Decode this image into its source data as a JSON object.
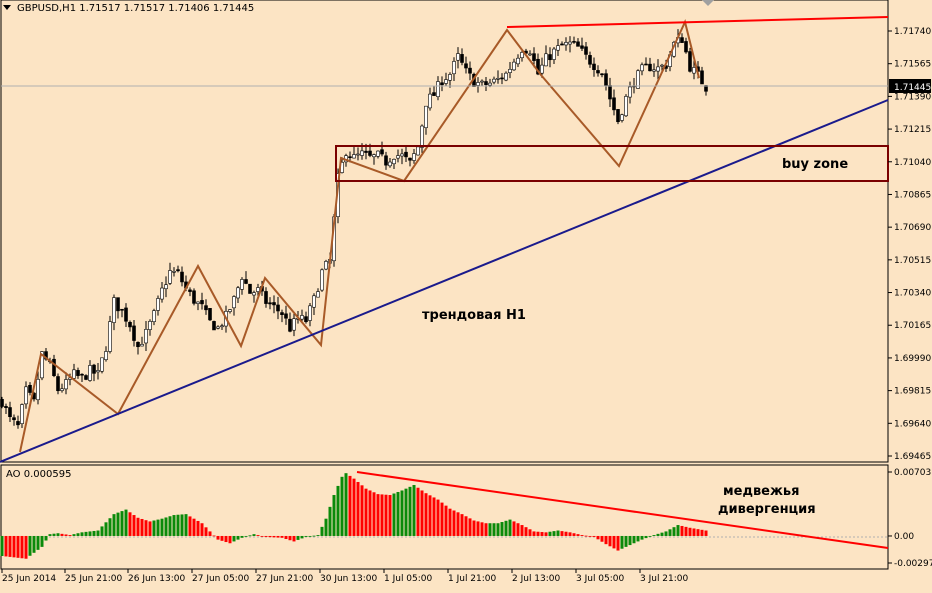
{
  "header": {
    "symbol_line": "GBPUSD,H1  1.71517 1.71517 1.71406 1.71445",
    "indicator_line": "AO 0.000595"
  },
  "annotations": {
    "buy_zone": "buy zone",
    "trend_label": "трендовая Н1",
    "divergence_line1": "медвежья",
    "divergence_line2": "дивергенция"
  },
  "chart_data": [
    {
      "type": "candlestick",
      "title": "GBPUSD,H1",
      "ohlc_header": {
        "open": 1.71517,
        "high": 1.71517,
        "low": 1.71406,
        "close": 1.71445
      },
      "current_price": 1.71445,
      "ylim": [
        1.69445,
        1.71856
      ],
      "y_ticks": [
        1.7174,
        1.71565,
        1.7139,
        1.71215,
        1.7104,
        1.70865,
        1.7069,
        1.70515,
        1.7034,
        1.70165,
        1.6999,
        1.69815,
        1.6964,
        1.69465
      ],
      "y_tick_labels": [
        "1.71740",
        "1.71565",
        "1.71390",
        "1.71215",
        "1.71040",
        "1.70865",
        "1.70690",
        "1.70515",
        "1.70340",
        "1.70165",
        "1.69990",
        "1.69815",
        "1.69640",
        "1.69465"
      ],
      "x_tick_labels": [
        "25 Jun 2014",
        "25 Jun 21:00",
        "26 Jun 13:00",
        "27 Jun 05:00",
        "27 Jun 21:00",
        "30 Jun 13:00",
        "1 Jul 05:00",
        "1 Jul 21:00",
        "2 Jul 13:00",
        "3 Jul 05:00",
        "3 Jul 21:00"
      ],
      "close_path_anchors": [
        [
          0,
          1.6976
        ],
        [
          2,
          1.6966
        ],
        [
          4,
          1.6962
        ],
        [
          6,
          1.6981
        ],
        [
          8,
          1.6975
        ],
        [
          10,
          1.7001
        ],
        [
          12,
          1.6995
        ],
        [
          14,
          1.6982
        ],
        [
          16,
          1.6985
        ],
        [
          18,
          1.699
        ],
        [
          20,
          1.6988
        ],
        [
          22,
          1.6992
        ],
        [
          24,
          1.699
        ],
        [
          26,
          1.7005
        ],
        [
          28,
          1.7029
        ],
        [
          30,
          1.7024
        ],
        [
          32,
          1.7017
        ],
        [
          34,
          1.7005
        ],
        [
          36,
          1.7012
        ],
        [
          38,
          1.7022
        ],
        [
          40,
          1.7035
        ],
        [
          42,
          1.7045
        ],
        [
          44,
          1.7044
        ],
        [
          46,
          1.7036
        ],
        [
          48,
          1.703
        ],
        [
          50,
          1.7026
        ],
        [
          52,
          1.7018
        ],
        [
          54,
          1.7015
        ],
        [
          56,
          1.7021
        ],
        [
          58,
          1.703
        ],
        [
          60,
          1.7043
        ],
        [
          62,
          1.7034
        ],
        [
          64,
          1.7035
        ],
        [
          66,
          1.7029
        ],
        [
          68,
          1.7026
        ],
        [
          70,
          1.7023
        ],
        [
          72,
          1.7015
        ],
        [
          74,
          1.702
        ],
        [
          76,
          1.7019
        ],
        [
          78,
          1.703
        ],
        [
          80,
          1.7045
        ],
        [
          82,
          1.7051
        ],
        [
          84,
          1.7095
        ],
        [
          86,
          1.711
        ],
        [
          88,
          1.7106
        ],
        [
          90,
          1.7108
        ],
        [
          92,
          1.7106
        ],
        [
          94,
          1.7107
        ],
        [
          96,
          1.7104
        ],
        [
          98,
          1.7108
        ],
        [
          100,
          1.7107
        ],
        [
          102,
          1.7103
        ],
        [
          104,
          1.7112
        ],
        [
          106,
          1.7136
        ],
        [
          108,
          1.714
        ],
        [
          110,
          1.7148
        ],
        [
          112,
          1.7151
        ],
        [
          114,
          1.716
        ],
        [
          116,
          1.7152
        ],
        [
          118,
          1.7147
        ],
        [
          120,
          1.7145
        ],
        [
          122,
          1.7146
        ],
        [
          124,
          1.7148
        ],
        [
          126,
          1.7151
        ],
        [
          128,
          1.7158
        ],
        [
          130,
          1.7165
        ],
        [
          132,
          1.7164
        ],
        [
          134,
          1.7151
        ],
        [
          136,
          1.7159
        ],
        [
          138,
          1.7163
        ],
        [
          140,
          1.7166
        ],
        [
          142,
          1.7167
        ],
        [
          144,
          1.7165
        ],
        [
          146,
          1.716
        ],
        [
          148,
          1.7156
        ],
        [
          150,
          1.7152
        ],
        [
          152,
          1.7138
        ],
        [
          154,
          1.7126
        ],
        [
          156,
          1.7138
        ],
        [
          158,
          1.7147
        ],
        [
          160,
          1.7153
        ],
        [
          162,
          1.7155
        ],
        [
          164,
          1.7154
        ],
        [
          166,
          1.7156
        ],
        [
          168,
          1.7167
        ],
        [
          170,
          1.717
        ],
        [
          172,
          1.7155
        ],
        [
          174,
          1.715
        ],
        [
          176,
          1.7144
        ]
      ],
      "drawn_objects": [
        {
          "kind": "rectangle",
          "label": "buy zone",
          "price_top": 1.7113,
          "price_bottom": 1.70935,
          "color": "#7a0000"
        },
        {
          "kind": "trendline",
          "label": "трендовая Н1",
          "color": "#1a1a8c"
        },
        {
          "kind": "trendline",
          "color": "#ff0000"
        },
        {
          "kind": "zigzag",
          "color": "#a85a28"
        }
      ]
    },
    {
      "type": "bar",
      "title": "AO 0.000595",
      "current_value": 0.000595,
      "ylim": [
        -0.00297,
        0.00703
      ],
      "y_ticks": [
        0.00703,
        0.0,
        -0.00297
      ],
      "y_tick_labels": [
        "0.00703",
        "0.00",
        "-0.00297"
      ],
      "colors": {
        "up": "#0a8a0a",
        "down": "#ff0000"
      },
      "values_anchors": [
        [
          0,
          -0.0022
        ],
        [
          6,
          -0.0025
        ],
        [
          10,
          -0.0012
        ],
        [
          12,
          0.0002
        ],
        [
          14,
          0.0003
        ],
        [
          17,
          0.0001
        ],
        [
          20,
          0.0004
        ],
        [
          24,
          0.0006
        ],
        [
          28,
          0.0024
        ],
        [
          31,
          0.0029
        ],
        [
          34,
          0.002
        ],
        [
          37,
          0.0016
        ],
        [
          40,
          0.0019
        ],
        [
          43,
          0.0023
        ],
        [
          46,
          0.0024
        ],
        [
          50,
          0.0014
        ],
        [
          54,
          -0.0004
        ],
        [
          57,
          -0.0008
        ],
        [
          60,
          -0.0002
        ],
        [
          63,
          0.0002
        ],
        [
          66,
          -0.0001
        ],
        [
          70,
          -0.0002
        ],
        [
          73,
          -0.0006
        ],
        [
          76,
          -0.0001
        ],
        [
          79,
          0.0001
        ],
        [
          81,
          0.0019
        ],
        [
          83,
          0.0045
        ],
        [
          85,
          0.0065
        ],
        [
          86,
          0.0069
        ],
        [
          88,
          0.0063
        ],
        [
          91,
          0.0052
        ],
        [
          94,
          0.0046
        ],
        [
          97,
          0.0045
        ],
        [
          100,
          0.005
        ],
        [
          103,
          0.0056
        ],
        [
          106,
          0.0047
        ],
        [
          109,
          0.004
        ],
        [
          112,
          0.003
        ],
        [
          115,
          0.0024
        ],
        [
          118,
          0.0017
        ],
        [
          121,
          0.0014
        ],
        [
          124,
          0.0014
        ],
        [
          127,
          0.0018
        ],
        [
          130,
          0.0012
        ],
        [
          133,
          0.0005
        ],
        [
          136,
          0.0004
        ],
        [
          139,
          0.0006
        ],
        [
          142,
          0.0004
        ],
        [
          145,
          0.0001
        ],
        [
          148,
          -0.0001
        ],
        [
          151,
          -0.0009
        ],
        [
          154,
          -0.0016
        ],
        [
          157,
          -0.001
        ],
        [
          160,
          -0.0004
        ],
        [
          163,
          0.0001
        ],
        [
          166,
          0.0005
        ],
        [
          169,
          0.0012
        ],
        [
          172,
          0.0009
        ],
        [
          176,
          0.0006
        ]
      ],
      "drawn_objects": [
        {
          "kind": "trendline",
          "label": "медвежья дивергенция",
          "color": "#ff0000"
        }
      ]
    }
  ]
}
